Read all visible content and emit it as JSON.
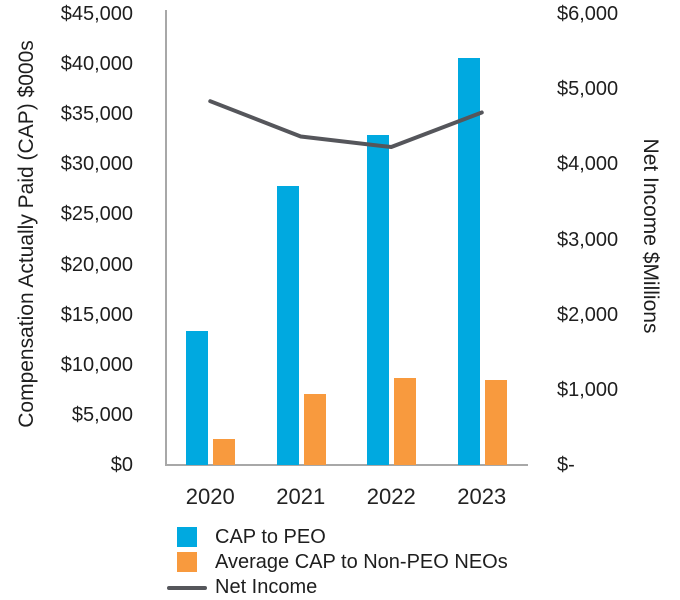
{
  "chart_data": {
    "type": "combo-bar-line",
    "title": "",
    "categories": [
      "2020",
      "2021",
      "2022",
      "2023"
    ],
    "series": [
      {
        "name": "CAP to PEO",
        "type": "bar",
        "axis": "left",
        "color": "#00A9E0",
        "values": [
          13400,
          27800,
          32900,
          40600
        ]
      },
      {
        "name": "Average CAP to Non-PEO NEOs",
        "type": "bar",
        "axis": "left",
        "color": "#F89A3E",
        "values": [
          2600,
          7100,
          8700,
          8500
        ]
      },
      {
        "name": "Net Income",
        "type": "line",
        "axis": "right",
        "color": "#55565B",
        "values": [
          4840,
          4370,
          4230,
          4690
        ]
      }
    ],
    "left_axis": {
      "title": "Compensation Actually Paid (CAP) $000s",
      "min": 0,
      "max": 45000,
      "step": 5000,
      "tick_labels": [
        "$45,000",
        "$40,000",
        "$35,000",
        "$30,000",
        "$25,000",
        "$20,000",
        "$15,000",
        "$10,000",
        "$5,000",
        "$0"
      ]
    },
    "right_axis": {
      "title": "Net Income $Millions",
      "min": 0,
      "max": 6000,
      "step": 1000,
      "tick_labels": [
        "$6,000",
        "$5,000",
        "$4,000",
        "$3,000",
        "$2,000",
        "$1,000",
        "$-"
      ]
    },
    "grid": false,
    "legend_position": "bottom-left",
    "legend": [
      "CAP to PEO",
      "Average CAP to Non-PEO NEOs",
      "Net Income"
    ],
    "style": {
      "axis_line_color": "#A8A8A8",
      "text_color": "#1E1E1E",
      "background": "#FFFFFF",
      "line_width": 4
    }
  }
}
